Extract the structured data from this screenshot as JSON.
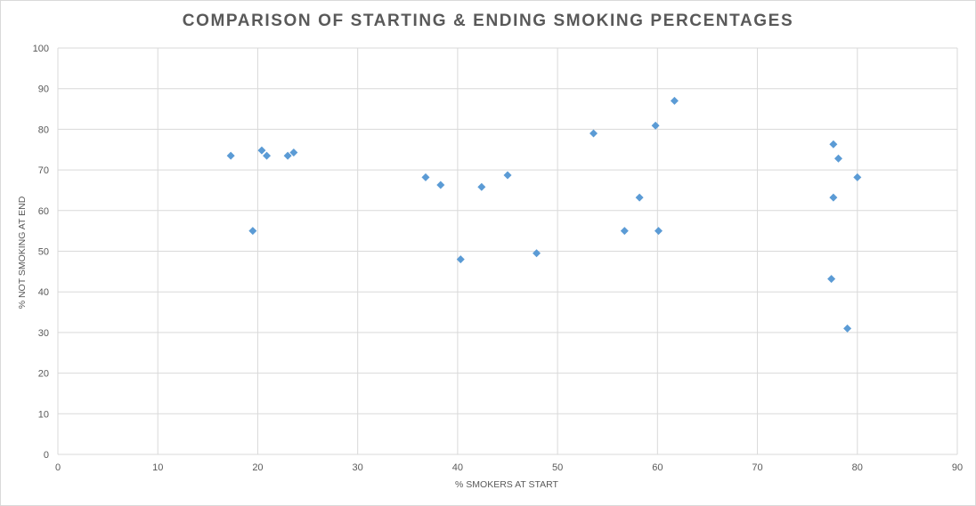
{
  "chart_data": {
    "type": "scatter",
    "title": "COMPARISON OF STARTING & ENDING SMOKING PERCENTAGES",
    "xlabel": "% SMOKERS AT START",
    "ylabel": "% NOT SMOKING AT END",
    "xlim": [
      0,
      90
    ],
    "ylim": [
      0,
      100
    ],
    "xticks": [
      0,
      10,
      20,
      30,
      40,
      50,
      60,
      70,
      80,
      90
    ],
    "yticks": [
      0,
      10,
      20,
      30,
      40,
      50,
      60,
      70,
      80,
      90,
      100
    ],
    "grid": true,
    "legend": "none",
    "marker": "diamond",
    "color": "#5b9bd5",
    "points": [
      {
        "x": 17.3,
        "y": 73.5
      },
      {
        "x": 19.5,
        "y": 55.0
      },
      {
        "x": 20.4,
        "y": 74.8
      },
      {
        "x": 20.9,
        "y": 73.5
      },
      {
        "x": 23.0,
        "y": 73.5
      },
      {
        "x": 23.6,
        "y": 74.3
      },
      {
        "x": 36.8,
        "y": 68.2
      },
      {
        "x": 38.3,
        "y": 66.3
      },
      {
        "x": 40.3,
        "y": 48.0
      },
      {
        "x": 42.4,
        "y": 65.8
      },
      {
        "x": 45.0,
        "y": 68.7
      },
      {
        "x": 47.9,
        "y": 49.5
      },
      {
        "x": 53.6,
        "y": 79.0
      },
      {
        "x": 56.7,
        "y": 55.0
      },
      {
        "x": 58.2,
        "y": 63.2
      },
      {
        "x": 59.8,
        "y": 80.9
      },
      {
        "x": 60.1,
        "y": 55.0
      },
      {
        "x": 61.7,
        "y": 87.0
      },
      {
        "x": 77.4,
        "y": 43.2
      },
      {
        "x": 77.6,
        "y": 76.3
      },
      {
        "x": 77.6,
        "y": 63.2
      },
      {
        "x": 78.1,
        "y": 72.8
      },
      {
        "x": 79.0,
        "y": 31.0
      },
      {
        "x": 80.0,
        "y": 68.2
      }
    ]
  }
}
